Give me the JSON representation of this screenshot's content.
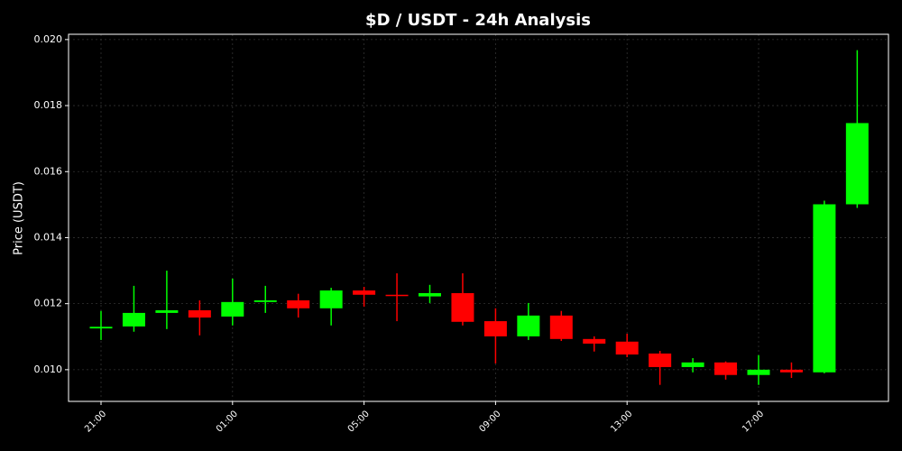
{
  "chart_data": {
    "type": "candlestick",
    "title": "$D / USDT - 24h Analysis",
    "y_label": "Price (USDT)",
    "categories": [
      "21:00",
      null,
      null,
      null,
      "01:00",
      null,
      null,
      null,
      "05:00",
      null,
      null,
      null,
      "09:00",
      null,
      null,
      null,
      "13:00",
      null,
      null,
      null,
      "17:00",
      null,
      null,
      null
    ],
    "open": [
      0.01125,
      0.01131,
      0.01172,
      0.0118,
      0.01161,
      0.01205,
      0.0121,
      0.01186,
      0.0124,
      0.01227,
      0.01222,
      0.01232,
      0.01147,
      0.01101,
      0.01164,
      0.01093,
      0.01085,
      0.01049,
      0.01008,
      0.01022,
      0.00984,
      0.01,
      0.00992,
      0.01501
    ],
    "high": [
      0.01178,
      0.01254,
      0.013,
      0.0121,
      0.01276,
      0.01254,
      0.0123,
      0.01248,
      0.01251,
      0.01292,
      0.01257,
      0.01292,
      0.01186,
      0.01202,
      0.01178,
      0.01101,
      0.01109,
      0.01057,
      0.01035,
      0.01025,
      0.01044,
      0.01022,
      0.01512,
      0.01968
    ],
    "low": [
      0.0109,
      0.01115,
      0.01123,
      0.01104,
      0.01134,
      0.01172,
      0.01158,
      0.01134,
      0.01191,
      0.01147,
      0.01202,
      0.01134,
      0.01019,
      0.0109,
      0.01087,
      0.01055,
      0.01038,
      0.00954,
      0.00992,
      0.0097,
      0.00954,
      0.00975,
      0.00989,
      0.0149
    ],
    "close": [
      0.0113,
      0.01172,
      0.0118,
      0.01158,
      0.01205,
      0.0121,
      0.01186,
      0.0124,
      0.01227,
      0.01224,
      0.01232,
      0.01145,
      0.01101,
      0.01164,
      0.01093,
      0.01079,
      0.01046,
      0.01008,
      0.01022,
      0.00984,
      0.01,
      0.00992,
      0.01501,
      0.01747
    ],
    "up_color": "#00ff00",
    "down_color": "#ff0000",
    "ylim": [
      0.00904,
      0.02016
    ],
    "yticks": [
      {
        "value": 0.01,
        "label": "0.010"
      },
      {
        "value": 0.012,
        "label": "0.012"
      },
      {
        "value": 0.014,
        "label": "0.014"
      },
      {
        "value": 0.016,
        "label": "0.016"
      },
      {
        "value": 0.018,
        "label": "0.018"
      },
      {
        "value": 0.02,
        "label": "0.020"
      }
    ],
    "grid": true
  }
}
